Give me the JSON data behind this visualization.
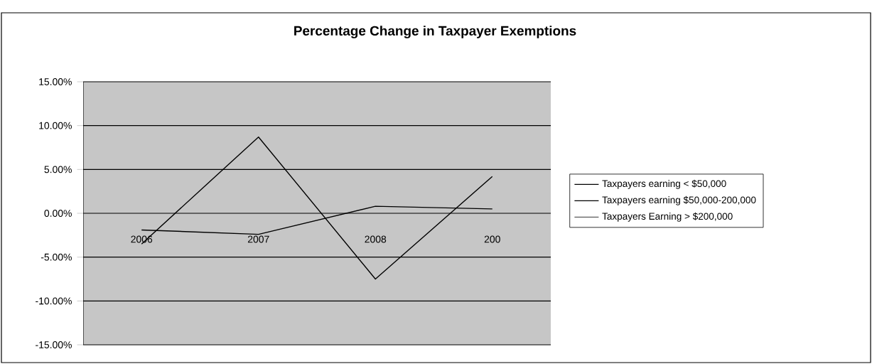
{
  "chart_data": {
    "type": "line",
    "title": "Percentage Change in Taxpayer Exemptions",
    "categories": [
      "2006",
      "2007",
      "2008",
      "200"
    ],
    "series": [
      {
        "name": "Taxpayers earning < $50,000",
        "color": "#000000",
        "values": [
          -3.5,
          8.7,
          -7.5,
          4.2
        ]
      },
      {
        "name": "Taxpayers earning $50,000-200,000",
        "color": "#000000",
        "values": [
          -1.9,
          -2.4,
          0.8,
          0.5
        ]
      },
      {
        "name": "Taxpayers Earning > $200,000",
        "values": [
          null,
          null,
          null,
          null
        ]
      }
    ],
    "ylim": [
      -15,
      15
    ],
    "yticks": [
      {
        "value": -15,
        "label": "-15.00%"
      },
      {
        "value": -10,
        "label": "-10.00%"
      },
      {
        "value": -5,
        "label": "-5.00%"
      },
      {
        "value": 0,
        "label": "0.00%"
      },
      {
        "value": 5,
        "label": "5.00%"
      },
      {
        "value": 10,
        "label": "10.00%"
      },
      {
        "value": 15,
        "label": "15.00%"
      }
    ],
    "grid": "y",
    "legend": "right",
    "marker": "none",
    "line_style": "solid"
  }
}
